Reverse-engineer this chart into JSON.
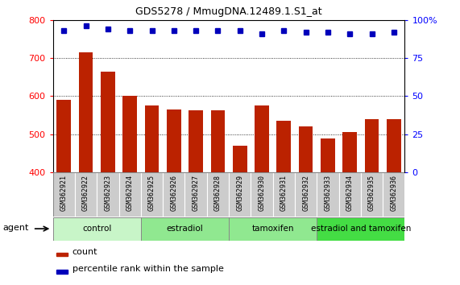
{
  "title": "GDS5278 / MmugDNA.12489.1.S1_at",
  "samples": [
    "GSM362921",
    "GSM362922",
    "GSM362923",
    "GSM362924",
    "GSM362925",
    "GSM362926",
    "GSM362927",
    "GSM362928",
    "GSM362929",
    "GSM362930",
    "GSM362931",
    "GSM362932",
    "GSM362933",
    "GSM362934",
    "GSM362935",
    "GSM362936"
  ],
  "counts": [
    590,
    715,
    665,
    600,
    575,
    565,
    563,
    563,
    470,
    575,
    535,
    520,
    490,
    505,
    540,
    540
  ],
  "percentiles": [
    93,
    96,
    94,
    93,
    93,
    93,
    93,
    93,
    93,
    91,
    93,
    92,
    92,
    91,
    91,
    92
  ],
  "groups": [
    {
      "label": "control",
      "start": 0,
      "end": 4,
      "color": "#c8f5c8"
    },
    {
      "label": "estradiol",
      "start": 4,
      "end": 8,
      "color": "#90e890"
    },
    {
      "label": "tamoxifen",
      "start": 8,
      "end": 12,
      "color": "#90e890"
    },
    {
      "label": "estradiol and tamoxifen",
      "start": 12,
      "end": 16,
      "color": "#44dd44"
    }
  ],
  "bar_color": "#bb2200",
  "dot_color": "#0000bb",
  "ylim_left": [
    400,
    800
  ],
  "ylim_right": [
    0,
    100
  ],
  "yticks_left": [
    400,
    500,
    600,
    700,
    800
  ],
  "yticks_right": [
    0,
    25,
    50,
    75,
    100
  ],
  "grid_values": [
    500,
    600,
    700
  ],
  "agent_label": "agent",
  "xtick_bg": "#cccccc",
  "group_border_color": "#888888"
}
